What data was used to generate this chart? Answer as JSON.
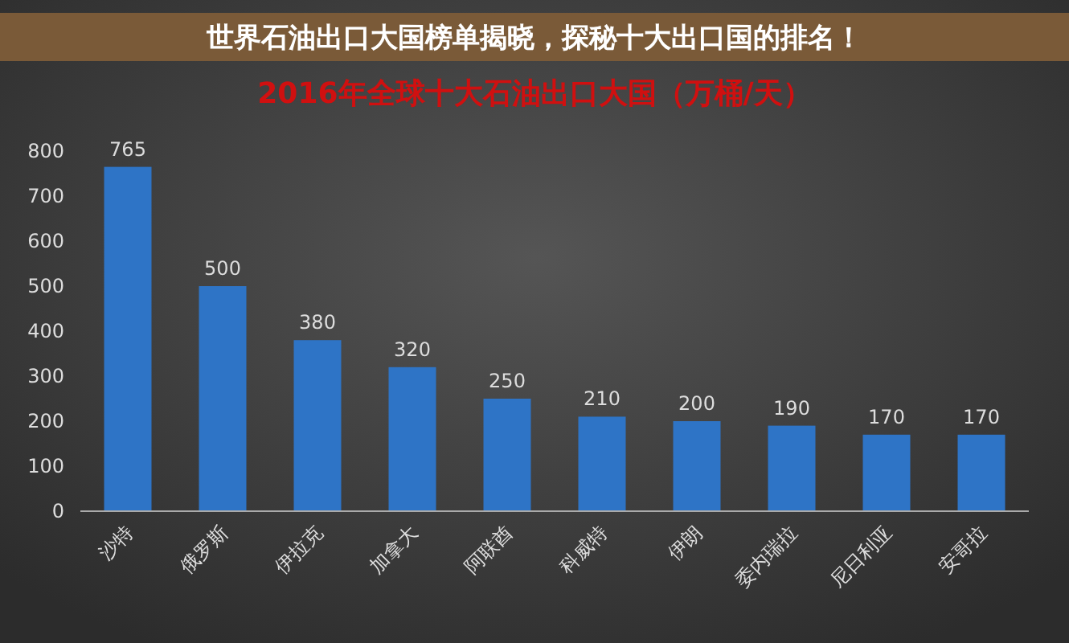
{
  "chart_data": {
    "type": "bar",
    "title": "2016年全球十大石油出口大国（万桶/天）",
    "annotations": [
      "世界石油出口大国榜单揭晓，探秘十大出口国的排名！"
    ],
    "categories": [
      "沙特",
      "俄罗斯",
      "伊拉克",
      "加拿大",
      "阿联酋",
      "科威特",
      "伊朗",
      "委内瑞拉",
      "尼日利亚",
      "安哥拉"
    ],
    "values": [
      765,
      500,
      380,
      320,
      250,
      210,
      200,
      190,
      170,
      170
    ],
    "color": "#2e74c6",
    "ylim": [
      0,
      800
    ],
    "yticks": [
      0,
      100,
      200,
      300,
      400,
      500,
      600,
      700,
      800
    ],
    "grid": false,
    "data_labels": true
  }
}
